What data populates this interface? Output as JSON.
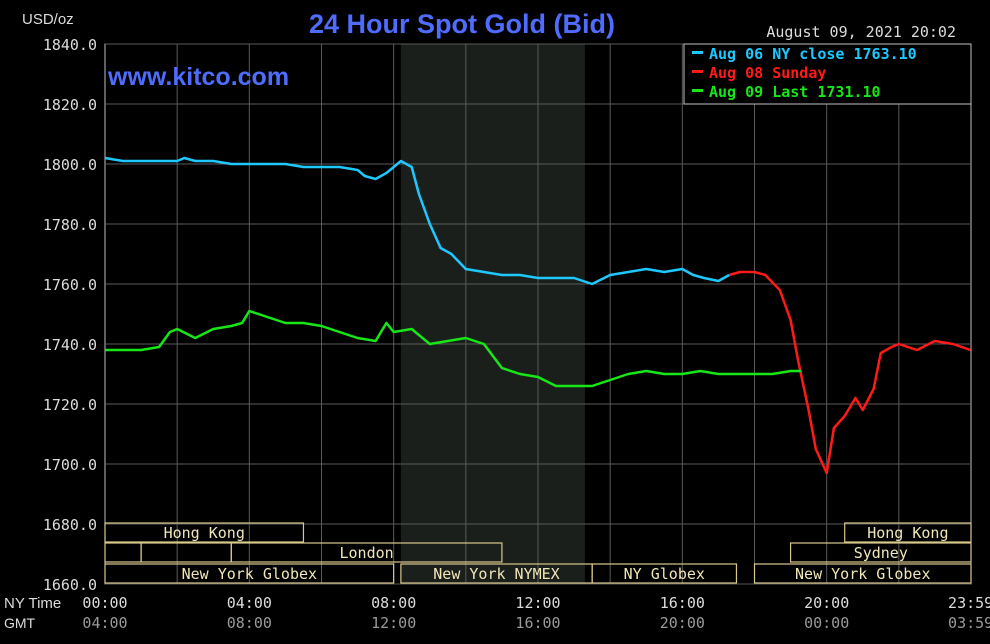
{
  "header": {
    "unit": "USD/oz",
    "title": "24 Hour Spot Gold (Bid)",
    "timestamp": "August 09, 2021 20:02",
    "watermark": "www.kitco.com"
  },
  "legend": [
    {
      "label": "Aug 06 NY close 1763.10",
      "color": "#1ec8ff"
    },
    {
      "label": "Aug 08 Sunday",
      "color": "#ff1a1a"
    },
    {
      "label": "Aug 09 Last 1731.10",
      "color": "#17e617"
    }
  ],
  "sessions": {
    "row1": [
      {
        "label": "Hong Kong",
        "start": 0,
        "end": 5.5
      },
      {
        "label": "Hong Kong",
        "start": 20.5,
        "end": 24
      }
    ],
    "row2": [
      {
        "label": "",
        "start": 0,
        "end": 1
      },
      {
        "label": "",
        "start": 1,
        "end": 3.5
      },
      {
        "label": "London",
        "start": 3.5,
        "end": 11
      },
      {
        "label": "Sydney",
        "start": 19,
        "end": 24
      }
    ],
    "row3": [
      {
        "label": "New York Globex",
        "start": 0,
        "end": 8
      },
      {
        "label": "New York NYMEX",
        "start": 8.2,
        "end": 13.5
      },
      {
        "label": "NY Globex",
        "start": 13.5,
        "end": 17.5
      },
      {
        "label": "New York Globex",
        "start": 18,
        "end": 24
      }
    ]
  },
  "axis_labels": {
    "ny_time": "NY Time",
    "gmt": "GMT"
  },
  "chart_data": {
    "type": "line",
    "title": "24 Hour Spot Gold (Bid)",
    "ylabel": "USD/oz",
    "ylim": [
      1660,
      1840
    ],
    "xlim": [
      0,
      24
    ],
    "grid": true,
    "legend_position": "top-right",
    "shaded_region": {
      "start": 8.2,
      "end": 13.3
    },
    "yticks": [
      "1840.0",
      "1820.0",
      "1800.0",
      "1780.0",
      "1760.0",
      "1740.0",
      "1720.0",
      "1700.0",
      "1680.0",
      "1660.0"
    ],
    "xticks_ny": [
      "00:00",
      "04:00",
      "08:00",
      "12:00",
      "16:00",
      "20:00",
      "23:59"
    ],
    "xticks_gmt": [
      "04:00",
      "08:00",
      "12:00",
      "16:00",
      "20:00",
      "00:00",
      "03:59"
    ],
    "series": [
      {
        "name": "Aug 06 NY close 1763.10",
        "color": "#1ec8ff",
        "x": [
          0,
          0.5,
          1,
          1.5,
          2,
          2.2,
          2.5,
          3,
          3.5,
          4,
          4.5,
          5,
          5.5,
          6,
          6.5,
          7,
          7.2,
          7.5,
          7.8,
          8,
          8.2,
          8.5,
          8.7,
          9,
          9.3,
          9.6,
          10,
          10.5,
          11,
          11.5,
          12,
          12.5,
          13,
          13.5,
          14,
          14.5,
          15,
          15.5,
          16,
          16.3,
          16.6,
          17,
          17.3
        ],
        "values": [
          1802,
          1801,
          1801,
          1801,
          1801,
          1802,
          1801,
          1801,
          1800,
          1800,
          1800,
          1800,
          1799,
          1799,
          1799,
          1798,
          1796,
          1795,
          1797,
          1799,
          1801,
          1799,
          1790,
          1780,
          1772,
          1770,
          1765,
          1764,
          1763,
          1763,
          1762,
          1762,
          1762,
          1760,
          1763,
          1764,
          1765,
          1764,
          1765,
          1763,
          1762,
          1761,
          1763
        ]
      },
      {
        "name": "Aug 08 Sunday",
        "color": "#ff1a1a",
        "x": [
          17.3,
          17.6,
          18,
          18.3,
          18.7,
          19,
          19.2,
          19.5,
          19.7,
          20,
          20.2,
          20.5,
          20.8,
          21,
          21.3,
          21.5,
          21.8,
          22,
          22.5,
          23,
          23.5,
          23.99
        ],
        "values": [
          1763,
          1764,
          1764,
          1763,
          1758,
          1748,
          1735,
          1718,
          1705,
          1697,
          1712,
          1716,
          1722,
          1718,
          1725,
          1737,
          1739,
          1740,
          1738,
          1741,
          1740,
          1738
        ]
      },
      {
        "name": "Aug 09 Last 1731.10",
        "color": "#17e617",
        "x": [
          0,
          0.5,
          1,
          1.5,
          1.8,
          2,
          2.5,
          3,
          3.5,
          3.8,
          4,
          4.5,
          5,
          5.5,
          6,
          6.5,
          7,
          7.5,
          7.8,
          8,
          8.5,
          9,
          9.5,
          10,
          10.5,
          11,
          11.5,
          12,
          12.5,
          13,
          13.5,
          14,
          14.5,
          15,
          15.5,
          16,
          16.5,
          17,
          17.5,
          18,
          18.5,
          19,
          19.3
        ],
        "values": [
          1738,
          1738,
          1738,
          1739,
          1744,
          1745,
          1742,
          1745,
          1746,
          1747,
          1751,
          1749,
          1747,
          1747,
          1746,
          1744,
          1742,
          1741,
          1747,
          1744,
          1745,
          1740,
          1741,
          1742,
          1740,
          1732,
          1730,
          1729,
          1726,
          1726,
          1726,
          1728,
          1730,
          1731,
          1730,
          1730,
          1731,
          1730,
          1730,
          1730,
          1730,
          1731,
          1731
        ]
      }
    ]
  }
}
